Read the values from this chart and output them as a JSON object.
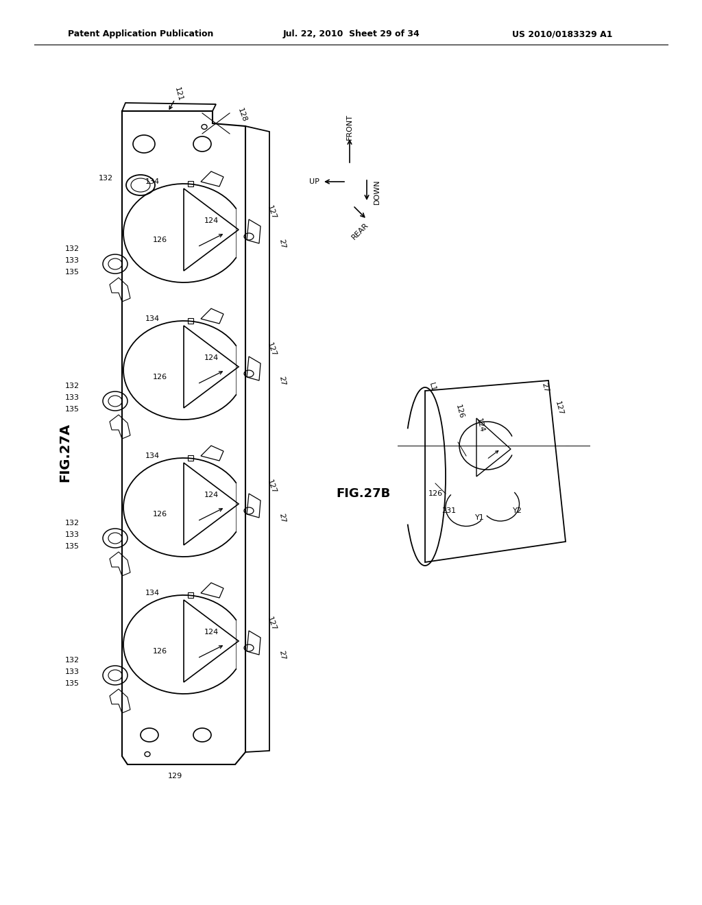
{
  "bg_color": "#ffffff",
  "header_left": "Patent Application Publication",
  "header_mid": "Jul. 22, 2010  Sheet 29 of 34",
  "header_right": "US 2010/0183329 A1",
  "fig27a_label": "FIG.27A",
  "fig27b_label": "FIG.27B",
  "line_color": "#000000",
  "text_color": "#000000"
}
